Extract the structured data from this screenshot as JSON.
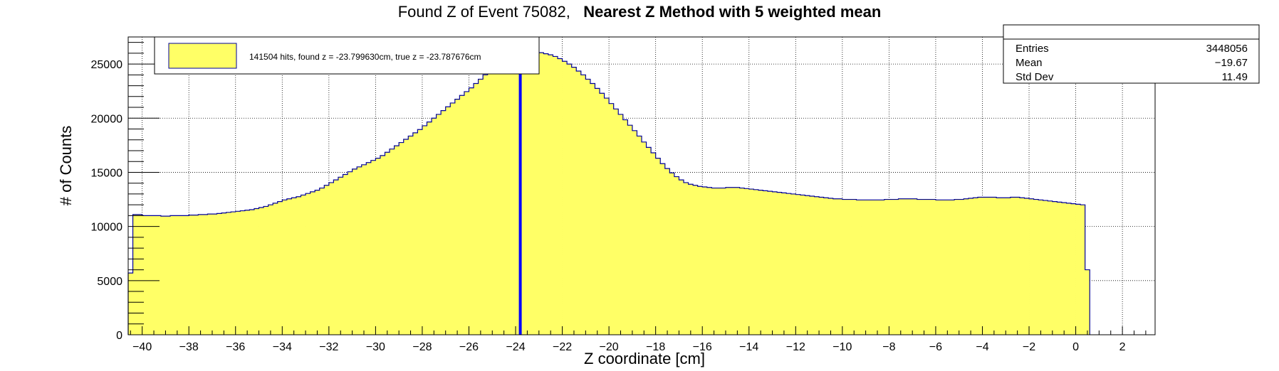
{
  "title": {
    "prefix": "Found Z of Event 75082,",
    "method": "Nearest Z Method with 5 weighted mean"
  },
  "stats_box": {
    "entries_label": "Entries",
    "entries_value": "3448056",
    "mean_label": "Mean",
    "mean_value": "−19.67",
    "stddev_label": "Std Dev",
    "stddev_value": "11.49"
  },
  "legend": {
    "entry": "141504 hits, found z = -23.799630cm, true z = -23.787676cm",
    "fill_color": "#ffff66"
  },
  "colors": {
    "fill": "#ffff66",
    "outline": "#000099",
    "marker_line": "#0000ff"
  },
  "chart_data": {
    "type": "histogram",
    "xlabel": "Z coordinate [cm]",
    "ylabel": "# of Counts",
    "xlim": [
      -40.6,
      3.4
    ],
    "ylim": [
      0,
      27500
    ],
    "xticks": [
      -40,
      -38,
      -36,
      -34,
      -32,
      -30,
      -28,
      -26,
      -24,
      -22,
      -20,
      -18,
      -16,
      -14,
      -12,
      -10,
      -8,
      -6,
      -4,
      -2,
      0,
      2
    ],
    "yticks": [
      0,
      5000,
      10000,
      15000,
      20000,
      25000
    ],
    "grid": true,
    "bin_width": 0.2,
    "bin_edges": [
      -40.6,
      -40.4
    ],
    "counts": [
      5700,
      11100,
      11100,
      11000,
      11000,
      11000,
      11000,
      10950,
      10950,
      11000,
      11000,
      11000,
      11000,
      11050,
      11050,
      11100,
      11100,
      11150,
      11150,
      11200,
      11250,
      11300,
      11350,
      11400,
      11450,
      11500,
      11550,
      11650,
      11750,
      11850,
      12000,
      12150,
      12300,
      12450,
      12550,
      12650,
      12750,
      12900,
      13050,
      13200,
      13350,
      13550,
      13800,
      14050,
      14300,
      14550,
      14800,
      15050,
      15300,
      15500,
      15700,
      15900,
      16100,
      16300,
      16550,
      16850,
      17150,
      17450,
      17750,
      18050,
      18350,
      18650,
      18950,
      19300,
      19650,
      20000,
      20350,
      20700,
      21050,
      21400,
      21750,
      22100,
      22450,
      22800,
      23200,
      23600,
      24000,
      24300,
      24600,
      24900,
      25150,
      25400,
      25600,
      25800,
      25950,
      26050,
      26100,
      26100,
      26050,
      25950,
      25850,
      25700,
      25500,
      25250,
      25000,
      24700,
      24350,
      24000,
      23600,
      23200,
      22750,
      22300,
      21850,
      21350,
      20850,
      20350,
      19850,
      19350,
      18850,
      18350,
      17800,
      17300,
      16800,
      16300,
      15800,
      15350,
      14950,
      14600,
      14300,
      14050,
      13900,
      13800,
      13700,
      13650,
      13600,
      13550,
      13550,
      13550,
      13600,
      13600,
      13600,
      13550,
      13500,
      13450,
      13400,
      13350,
      13300,
      13250,
      13200,
      13150,
      13100,
      13050,
      13000,
      12950,
      12900,
      12850,
      12800,
      12750,
      12700,
      12650,
      12600,
      12550,
      12550,
      12500,
      12500,
      12500,
      12450,
      12450,
      12450,
      12450,
      12450,
      12450,
      12500,
      12500,
      12500,
      12550,
      12550,
      12550,
      12550,
      12500,
      12500,
      12500,
      12500,
      12450,
      12450,
      12450,
      12450,
      12500,
      12500,
      12550,
      12600,
      12650,
      12700,
      12700,
      12700,
      12700,
      12650,
      12650,
      12650,
      12700,
      12700,
      12650,
      12600,
      12550,
      12500,
      12450,
      12400,
      12350,
      12300,
      12250,
      12200,
      12150,
      12100,
      12050,
      12000,
      6000
    ],
    "marked_line": {
      "x": -23.8,
      "color": "#0000ff"
    }
  }
}
